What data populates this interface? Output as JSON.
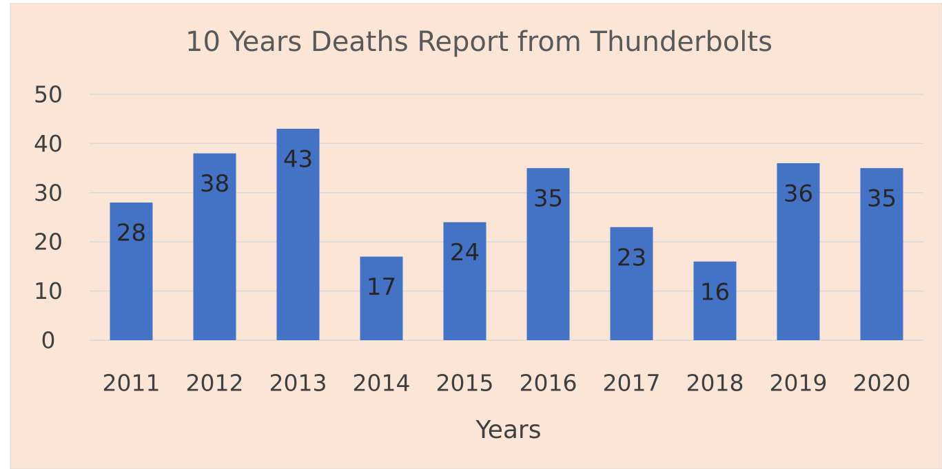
{
  "chart_data": {
    "type": "bar",
    "title": "10 Years Deaths Report from Thunderbolts",
    "x_label": "Years",
    "categories": [
      "2011",
      "2012",
      "2013",
      "2014",
      "2015",
      "2016",
      "2017",
      "2018",
      "2019",
      "2020"
    ],
    "values": [
      28,
      38,
      43,
      17,
      24,
      35,
      23,
      16,
      36,
      35
    ],
    "color": "#4472c4",
    "ylim": [
      0,
      50
    ],
    "yticks": [
      0,
      10,
      20,
      30,
      40,
      50
    ],
    "grid": true
  }
}
